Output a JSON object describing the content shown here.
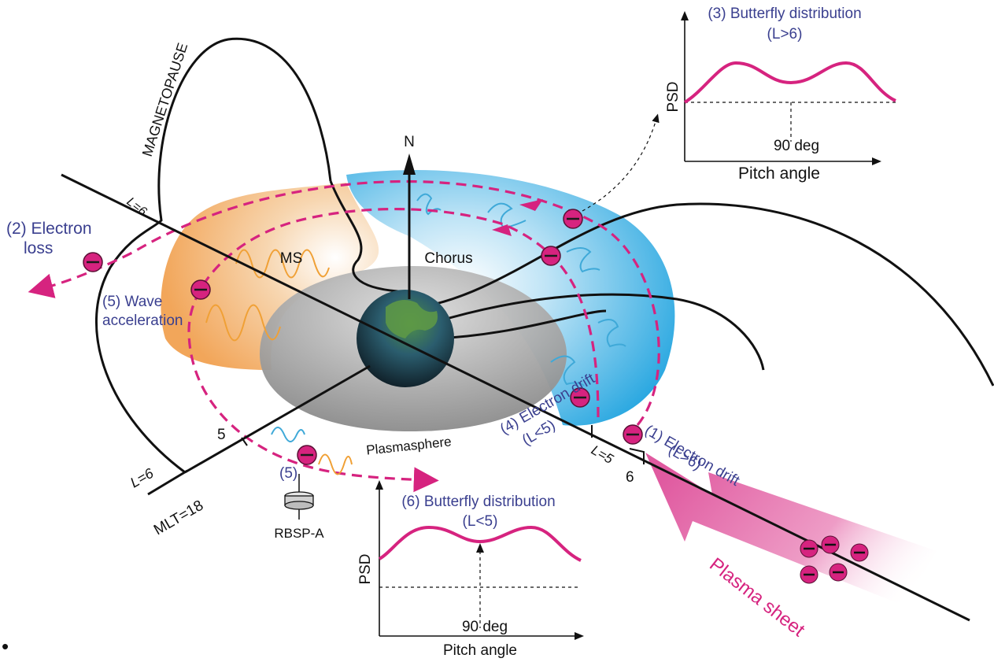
{
  "labels": {
    "magnetopause": "MAGNETOPAUSE",
    "north": "N",
    "ms": "MS",
    "chorus": "Chorus",
    "plasmasphere": "Plasmasphere",
    "electron_loss_1": "(2) Electron",
    "electron_loss_2": "loss",
    "wave_accel_1": "(5) Wave",
    "wave_accel_2": "acceleration",
    "drift1_1": "(1) Electron drift",
    "drift1_2": "(L>6)",
    "drift4_1": "(4) Electron drift",
    "drift4_2": "(L<5)",
    "five_tag": "(5)",
    "rbsp": "RBSP-A",
    "plasma_sheet": "Plasma sheet",
    "l6_top": "L=6",
    "l6_bottom": "L=6",
    "l5": "L=5",
    "tick5": "5",
    "tick6": "6",
    "mlt": "MLT=18"
  },
  "inset_top": {
    "title_1": "(3) Butterfly distribution",
    "title_2": "(L>6)",
    "ylabel": "PSD",
    "xlabel": "Pitch angle",
    "tick": "90 deg"
  },
  "inset_bottom": {
    "title_1": "(6) Butterfly distribution",
    "title_2": "(L<5)",
    "ylabel": "PSD",
    "xlabel": "Pitch angle",
    "tick": "90 deg"
  },
  "bullet": "•",
  "colors": {
    "electron": "#d6237f",
    "label_blue": "#3a3f8f",
    "chorus_region": "#2fa6e0",
    "ms_region": "#f2b070",
    "plasmasphere": "#8f8f8f"
  }
}
